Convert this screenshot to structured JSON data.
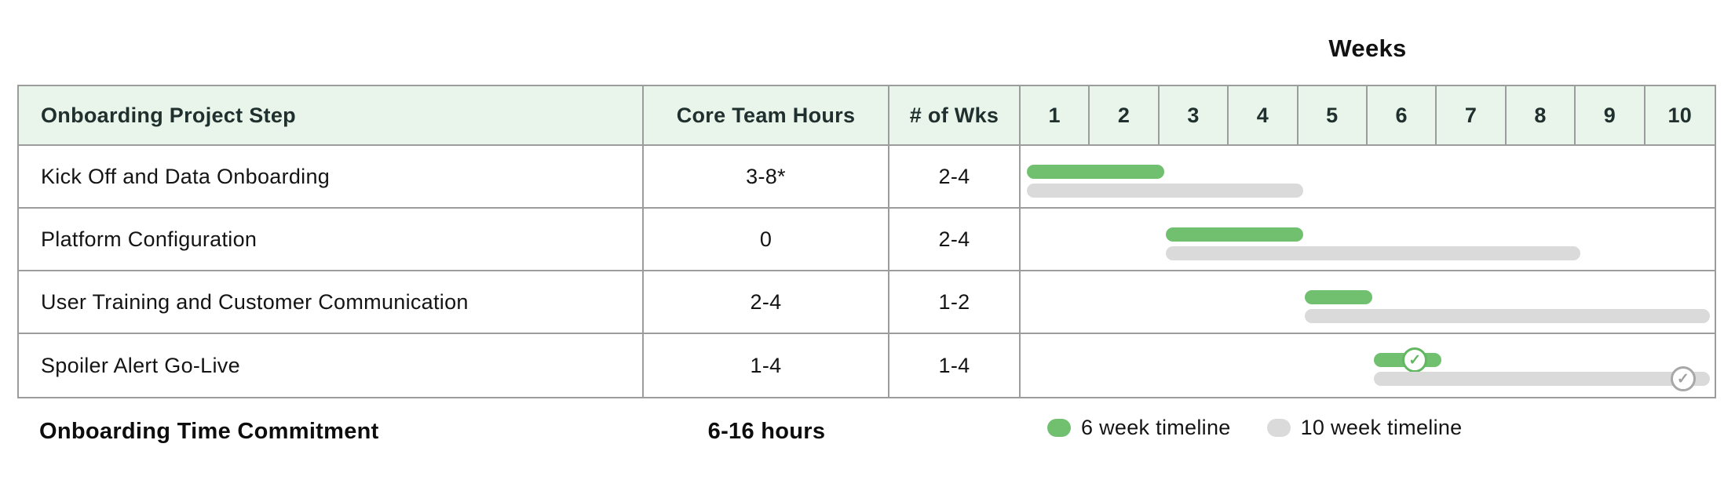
{
  "weeks_title": "Weeks",
  "table": {
    "headers": {
      "step": "Onboarding Project Step",
      "hours": "Core Team Hours",
      "weeks": "# of Wks"
    },
    "week_numbers": [
      "1",
      "2",
      "3",
      "4",
      "5",
      "6",
      "7",
      "8",
      "9",
      "10"
    ],
    "rows": [
      {
        "step": "Kick Off and Data Onboarding",
        "hours": "3-8*",
        "weeks": "2-4",
        "timeline_6wk": {
          "start_week": 1,
          "end_week": 2,
          "complete": false
        },
        "timeline_10wk": {
          "start_week": 1,
          "end_week": 4,
          "complete": false
        }
      },
      {
        "step": "Platform Configuration",
        "hours": "0",
        "weeks": "2-4",
        "timeline_6wk": {
          "start_week": 3,
          "end_week": 4,
          "complete": false
        },
        "timeline_10wk": {
          "start_week": 3,
          "end_week": 8,
          "complete": false
        }
      },
      {
        "step": "User Training and Customer Communication",
        "hours": "2-4",
        "weeks": "1-2",
        "timeline_6wk": {
          "start_week": 5,
          "end_week": 5,
          "complete": false
        },
        "timeline_10wk": {
          "start_week": 5,
          "end_week": 10,
          "complete": false
        }
      },
      {
        "step": "Spoiler Alert Go-Live",
        "hours": "1-4",
        "weeks": "1-4",
        "timeline_6wk": {
          "start_week": 6,
          "end_week": 6,
          "complete": true
        },
        "timeline_10wk": {
          "start_week": 6,
          "end_week": 10,
          "complete": true
        }
      }
    ]
  },
  "footer": {
    "label": "Onboarding Time Commitment",
    "hours": "6-16 hours"
  },
  "legend": [
    {
      "label": "6 week timeline",
      "color": "#70c070"
    },
    {
      "label": "10 week timeline",
      "color": "#dadada"
    }
  ],
  "colors": {
    "bar_green": "#70c070",
    "bar_gray": "#dadada",
    "header_bg": "#e9f4ea",
    "grid_border": "#9c9c9c",
    "check_green": "#61b861",
    "check_gray": "#a8a8a8"
  },
  "chart_data": {
    "type": "table",
    "subtype": "gantt",
    "title": "Weeks",
    "columns": [
      "Onboarding Project Step",
      "Core Team Hours",
      "# of Wks",
      "Weeks 1-10"
    ],
    "x_axis": {
      "label": "Weeks",
      "ticks": [
        1,
        2,
        3,
        4,
        5,
        6,
        7,
        8,
        9,
        10
      ],
      "range": [
        1,
        10
      ]
    },
    "legend_position": "bottom",
    "series": [
      {
        "name": "6 week timeline",
        "color": "#70c070",
        "spans": [
          {
            "task": "Kick Off and Data Onboarding",
            "start_week": 1,
            "end_week": 2,
            "complete": false
          },
          {
            "task": "Platform Configuration",
            "start_week": 3,
            "end_week": 4,
            "complete": false
          },
          {
            "task": "User Training and Customer Communication",
            "start_week": 5,
            "end_week": 5,
            "complete": false
          },
          {
            "task": "Spoiler Alert Go-Live",
            "start_week": 6,
            "end_week": 6,
            "complete": true
          }
        ]
      },
      {
        "name": "10 week timeline",
        "color": "#dadada",
        "spans": [
          {
            "task": "Kick Off and Data Onboarding",
            "start_week": 1,
            "end_week": 4,
            "complete": false
          },
          {
            "task": "Platform Configuration",
            "start_week": 3,
            "end_week": 8,
            "complete": false
          },
          {
            "task": "User Training and Customer Communication",
            "start_week": 5,
            "end_week": 10,
            "complete": false
          },
          {
            "task": "Spoiler Alert Go-Live",
            "start_week": 6,
            "end_week": 10,
            "complete": true
          }
        ]
      }
    ],
    "table_rows": [
      {
        "step": "Kick Off and Data Onboarding",
        "core_team_hours": "3-8*",
        "num_weeks": "2-4"
      },
      {
        "step": "Platform Configuration",
        "core_team_hours": "0",
        "num_weeks": "2-4"
      },
      {
        "step": "User Training and Customer Communication",
        "core_team_hours": "2-4",
        "num_weeks": "1-2"
      },
      {
        "step": "Spoiler Alert Go-Live",
        "core_team_hours": "1-4",
        "num_weeks": "1-4"
      }
    ],
    "summary": {
      "label": "Onboarding Time Commitment",
      "total_hours": "6-16 hours"
    }
  }
}
